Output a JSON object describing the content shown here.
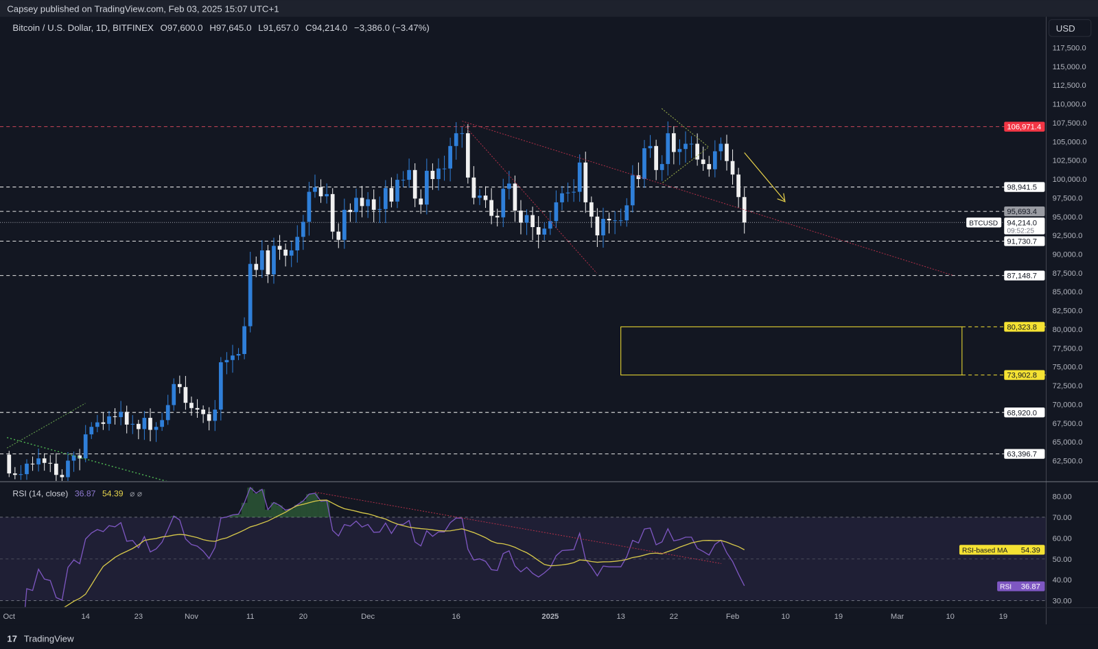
{
  "publish_bar": {
    "text": "Capsey published on TradingView.com, Feb 03, 2025 15:07 UTC+1"
  },
  "legend": {
    "symbol": "Bitcoin / U.S. Dollar, 1D, BITFINEX",
    "open": "O97,600.0",
    "high": "H97,645.0",
    "low": "L91,657.0",
    "close": "C94,214.0",
    "change": "−3,386.0 (−3.47%)"
  },
  "currency_button": "USD",
  "price_axis_ticks": [
    "117,500.0",
    "115,000.0",
    "112,500.0",
    "110,000.0",
    "107,500.0",
    "105,000.0",
    "102,500.0",
    "100,000.0",
    "97,500.0",
    "95,000.0",
    "92,500.0",
    "90,000.0",
    "87,500.0",
    "85,000.0",
    "82,500.0",
    "80,000.0",
    "77,500.0",
    "75,000.0",
    "72,500.0",
    "70,000.0",
    "67,500.0",
    "65,000.0",
    "62,500.0"
  ],
  "levels": [
    {
      "price": 106971.4,
      "label": "106,971.4",
      "style": "red"
    },
    {
      "price": 98941.5,
      "label": "98,941.5",
      "style": "white"
    },
    {
      "price": 95693.4,
      "label": "95,693.4",
      "style": "gray"
    },
    {
      "price": 91730.7,
      "label": "91,730.7",
      "style": "white"
    },
    {
      "price": 87148.7,
      "label": "87,148.7",
      "style": "white"
    },
    {
      "price": 80323.8,
      "label": "80,323.8",
      "style": "yellow"
    },
    {
      "price": 73902.8,
      "label": "73,902.8",
      "style": "yellow"
    },
    {
      "price": 68920.0,
      "label": "68,920.0",
      "style": "white"
    },
    {
      "price": 63396.7,
      "label": "63,396.7",
      "style": "white"
    }
  ],
  "current_price": {
    "symbol": "BTCUSD",
    "price": 94214.0,
    "label": "94,214.0",
    "countdown": "09:52:25"
  },
  "rsi": {
    "title": "RSI (14, close)",
    "value": "36.87",
    "ma_value": "54.39",
    "icons": "⌀ ⌀",
    "ticks": [
      "80.00",
      "70.00",
      "60.00",
      "50.00",
      "40.00",
      "30.00"
    ],
    "ma_label": "RSI-based MA",
    "rsi_label": "RSI"
  },
  "time_axis": [
    {
      "label": "Oct",
      "day": 0
    },
    {
      "label": "14",
      "day": 13
    },
    {
      "label": "23",
      "day": 22
    },
    {
      "label": "Nov",
      "day": 31
    },
    {
      "label": "11",
      "day": 41
    },
    {
      "label": "20",
      "day": 50
    },
    {
      "label": "Dec",
      "day": 61
    },
    {
      "label": "16",
      "day": 76
    },
    {
      "label": "2025",
      "day": 92
    },
    {
      "label": "13",
      "day": 104
    },
    {
      "label": "22",
      "day": 113
    },
    {
      "label": "Feb",
      "day": 123
    },
    {
      "label": "10",
      "day": 132
    },
    {
      "label": "19",
      "day": 141
    },
    {
      "label": "Mar",
      "day": 151
    },
    {
      "label": "10",
      "day": 160
    },
    {
      "label": "19",
      "day": 169
    }
  ],
  "footer": {
    "brand": "TradingView"
  },
  "colors": {
    "up": "#2f7fd9",
    "down": "#f0f0f0",
    "bg": "#131722",
    "rsi": "#7e57c2",
    "ma": "#d8c94a",
    "red": "#f23645",
    "yellow": "#f5e233"
  },
  "chart_data": {
    "type": "candlestick",
    "title": "Bitcoin / U.S. Dollar, 1D, BITFINEX",
    "start_date": "2024-10-01",
    "first_open": 63300,
    "closes": [
      60800,
      60600,
      60700,
      62100,
      62000,
      62800,
      62200,
      62100,
      60600,
      60300,
      62500,
      63200,
      62800,
      66000,
      67000,
      67600,
      67400,
      68400,
      68300,
      69000,
      67300,
      67400,
      66700,
      68200,
      66600,
      67000,
      67900,
      69900,
      72700,
      72300,
      70200,
      69500,
      69300,
      68700,
      67800,
      69300,
      75600,
      75900,
      76500,
      76700,
      80400,
      88700,
      87900,
      90500,
      87300,
      91100,
      90600,
      89800,
      90500,
      92300,
      94300,
      98300,
      98900,
      97700,
      98000,
      93000,
      91900,
      95900,
      95600,
      97500,
      96400,
      97300,
      95900,
      96000,
      98800,
      97000,
      99900,
      99900,
      101200,
      97400,
      96600,
      101100,
      100000,
      101400,
      101400,
      104400,
      106100,
      106100,
      100200,
      97500,
      97800,
      97200,
      95100,
      94900,
      98700,
      99400,
      95800,
      94200,
      95200,
      93600,
      92600,
      93400,
      94400,
      96900,
      98100,
      98200,
      98300,
      102200,
      96900,
      95000,
      92500,
      94700,
      94500,
      94500,
      94500,
      96500,
      100500,
      100000,
      104100,
      104400,
      101200,
      102000,
      106100,
      103600,
      104000,
      104700,
      104700,
      102600,
      102000,
      101300,
      103700,
      104700,
      102400,
      100600,
      97600,
      94214
    ],
    "ylim": [
      61000,
      119000
    ],
    "rsi_ylim": [
      25,
      87
    ],
    "zone": {
      "top": 80323.8,
      "bottom": 73902.8,
      "start_day": 104,
      "end_day": 162
    }
  }
}
